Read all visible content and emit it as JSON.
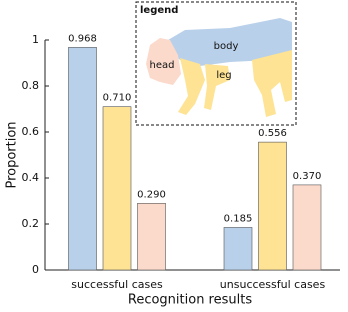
{
  "chart_data": {
    "type": "bar",
    "xlabel": "Recognition results",
    "ylabel": "Proportion",
    "categories": [
      "successful cases",
      "unsuccessful cases"
    ],
    "series": [
      {
        "name": "body",
        "color": "#b9d0ea",
        "values": [
          0.968,
          0.185
        ],
        "value_labels": [
          "0.968",
          "0.185"
        ]
      },
      {
        "name": "leg",
        "color": "#fde393",
        "values": [
          0.71,
          0.556
        ],
        "value_labels": [
          "0.710",
          "0.556"
        ]
      },
      {
        "name": "head",
        "color": "#fbd9cb",
        "values": [
          0.29,
          0.37
        ],
        "value_labels": [
          "0.290",
          "0.370"
        ]
      }
    ],
    "ylim": [
      0,
      1
    ],
    "yticks": [
      0,
      0.2,
      0.4,
      0.6,
      0.8,
      1
    ],
    "legend_title": "legend"
  }
}
